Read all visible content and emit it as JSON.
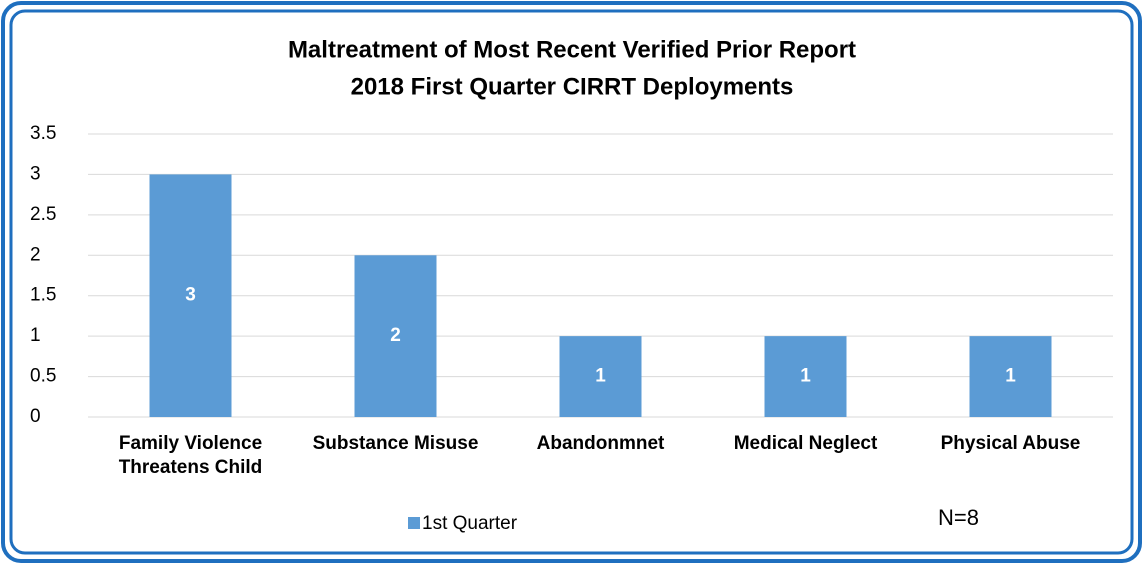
{
  "chart_data": {
    "type": "bar",
    "title": "Maltreatment of Most Recent Verified Prior Report",
    "subtitle": "2018 First Quarter CIRRT Deployments",
    "categories": [
      "Family Violence Threatens Child",
      "Substance Misuse",
      "Abandonmnet",
      "Medical Neglect",
      "Physical Abuse"
    ],
    "series": [
      {
        "name": "1st Quarter",
        "color": "#5b9bd5",
        "values": [
          3,
          2,
          1,
          1,
          1
        ]
      }
    ],
    "ylim": [
      0,
      3.5
    ],
    "yticks": [
      0,
      0.5,
      1,
      1.5,
      2,
      2.5,
      3,
      3.5
    ],
    "grid": true,
    "legend": "bottom",
    "annotation": "N=8"
  }
}
